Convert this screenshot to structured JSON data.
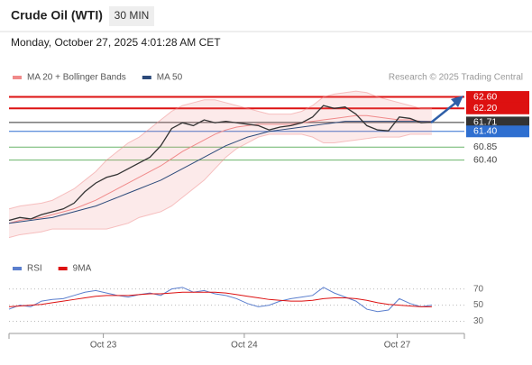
{
  "header": {
    "title": "Crude Oil (WTI)",
    "timeframe": "30 MIN",
    "date": "Monday, October 27, 2025 4:01:28 AM CET",
    "source": "Research © 2025 Trading Central"
  },
  "chart_data": [
    {
      "type": "line",
      "color": "#333333",
      "x": [
        0,
        1,
        2,
        3,
        4,
        5,
        6,
        7,
        8,
        9,
        10,
        11,
        12,
        13,
        14,
        15,
        16,
        17,
        18,
        19,
        20,
        21,
        22,
        23,
        24,
        25,
        26,
        27,
        28,
        29,
        30,
        31,
        32,
        33,
        34,
        35,
        36,
        37,
        38,
        39
      ],
      "values": [
        58.3,
        58.4,
        58.35,
        58.5,
        58.6,
        58.7,
        58.9,
        59.3,
        59.6,
        59.8,
        59.9,
        60.1,
        60.3,
        60.5,
        60.9,
        61.5,
        61.7,
        61.6,
        61.8,
        61.7,
        61.75,
        61.7,
        61.65,
        61.6,
        61.45,
        61.55,
        61.6,
        61.7,
        61.9,
        62.3,
        62.2,
        62.25,
        62.0,
        61.6,
        61.45,
        61.42,
        61.9,
        61.85,
        61.7,
        61.72
      ],
      "series": [
        {
          "name": "MA 20 + Bollinger Bands",
          "color": "#f08a8a",
          "values": [
            58.2,
            58.3,
            58.35,
            58.4,
            58.5,
            58.6,
            58.7,
            58.85,
            59.0,
            59.2,
            59.4,
            59.6,
            59.8,
            60.0,
            60.2,
            60.45,
            60.7,
            60.9,
            61.1,
            61.3,
            61.45,
            61.55,
            61.6,
            61.65,
            61.65,
            61.65,
            61.65,
            61.7,
            61.75,
            61.8,
            61.85,
            61.9,
            61.95,
            61.95,
            61.9,
            61.85,
            61.8,
            61.8,
            61.75,
            61.75
          ],
          "upper": [
            58.7,
            58.8,
            58.85,
            58.9,
            59.0,
            59.2,
            59.4,
            59.7,
            60.0,
            60.4,
            60.7,
            61.0,
            61.2,
            61.5,
            61.8,
            62.1,
            62.3,
            62.4,
            62.5,
            62.5,
            62.4,
            62.3,
            62.2,
            62.1,
            62.0,
            62.0,
            62.0,
            62.1,
            62.3,
            62.6,
            62.7,
            62.75,
            62.8,
            62.75,
            62.6,
            62.5,
            62.4,
            62.3,
            62.2,
            62.2
          ],
          "lower": [
            57.7,
            57.8,
            57.85,
            57.9,
            58.0,
            58.0,
            58.0,
            58.0,
            58.0,
            58.0,
            58.1,
            58.2,
            58.4,
            58.5,
            58.6,
            58.8,
            59.1,
            59.4,
            59.7,
            60.1,
            60.5,
            60.8,
            61.0,
            61.2,
            61.3,
            61.3,
            61.3,
            61.3,
            61.2,
            61.0,
            61.0,
            61.05,
            61.1,
            61.15,
            61.2,
            61.2,
            61.2,
            61.3,
            61.3,
            61.3
          ]
        },
        {
          "name": "MA 50",
          "color": "#2c4a7a",
          "values": [
            58.2,
            58.25,
            58.3,
            58.35,
            58.4,
            58.5,
            58.6,
            58.7,
            58.8,
            58.95,
            59.1,
            59.25,
            59.4,
            59.55,
            59.7,
            59.9,
            60.1,
            60.3,
            60.5,
            60.7,
            60.9,
            61.05,
            61.2,
            61.3,
            61.4,
            61.45,
            61.5,
            61.55,
            61.6,
            61.65,
            61.7,
            61.75,
            61.75,
            61.75,
            61.75,
            61.75,
            61.75,
            61.75,
            61.75,
            61.74
          ]
        }
      ],
      "levels": [
        {
          "value": 62.6,
          "label": "62.60",
          "color": "#dd1111",
          "boxed": true
        },
        {
          "value": 62.2,
          "label": "62.20",
          "color": "#dd1111",
          "boxed": true
        },
        {
          "value": 61.71,
          "label": "61.71",
          "color": "#333333",
          "boxed": true
        },
        {
          "value": 61.4,
          "label": "61.40",
          "color": "#2f6fd0",
          "boxed": true
        },
        {
          "value": 60.85,
          "label": "60.85",
          "color": "#6ab56a",
          "boxed": false
        },
        {
          "value": 60.4,
          "label": "60.40",
          "color": "#6ab56a",
          "boxed": false
        }
      ],
      "xlim": [
        0,
        42
      ],
      "ylim": [
        57.5,
        62.9
      ]
    },
    {
      "type": "line",
      "x": [
        0,
        1,
        2,
        3,
        4,
        5,
        6,
        7,
        8,
        9,
        10,
        11,
        12,
        13,
        14,
        15,
        16,
        17,
        18,
        19,
        20,
        21,
        22,
        23,
        24,
        25,
        26,
        27,
        28,
        29,
        30,
        31,
        32,
        33,
        34,
        35,
        36,
        37,
        38,
        39
      ],
      "series": [
        {
          "name": "RSI",
          "color": "#5b7fce",
          "values": [
            45,
            50,
            48,
            55,
            57,
            58,
            62,
            66,
            68,
            65,
            62,
            60,
            63,
            65,
            62,
            70,
            72,
            66,
            68,
            64,
            62,
            58,
            52,
            48,
            50,
            55,
            58,
            60,
            62,
            72,
            65,
            60,
            55,
            45,
            42,
            44,
            58,
            52,
            48,
            50
          ]
        },
        {
          "name": "9MA",
          "color": "#dd1111",
          "values": [
            48,
            49,
            50,
            51,
            53,
            55,
            57,
            59,
            61,
            62,
            62,
            62,
            63,
            64,
            64,
            65,
            66,
            66,
            66,
            66,
            65,
            63,
            61,
            59,
            57,
            56,
            55,
            55,
            56,
            58,
            59,
            59,
            58,
            56,
            53,
            51,
            50,
            49,
            48,
            48
          ]
        }
      ],
      "xlim": [
        0,
        42
      ],
      "ylim": [
        15,
        93
      ],
      "yticks": [
        30,
        50,
        70
      ],
      "xticks": [
        {
          "value": 8.7,
          "label": "Oct 23"
        },
        {
          "value": 21.7,
          "label": "Oct 24"
        },
        {
          "value": 35.8,
          "label": "Oct 27"
        }
      ]
    }
  ]
}
